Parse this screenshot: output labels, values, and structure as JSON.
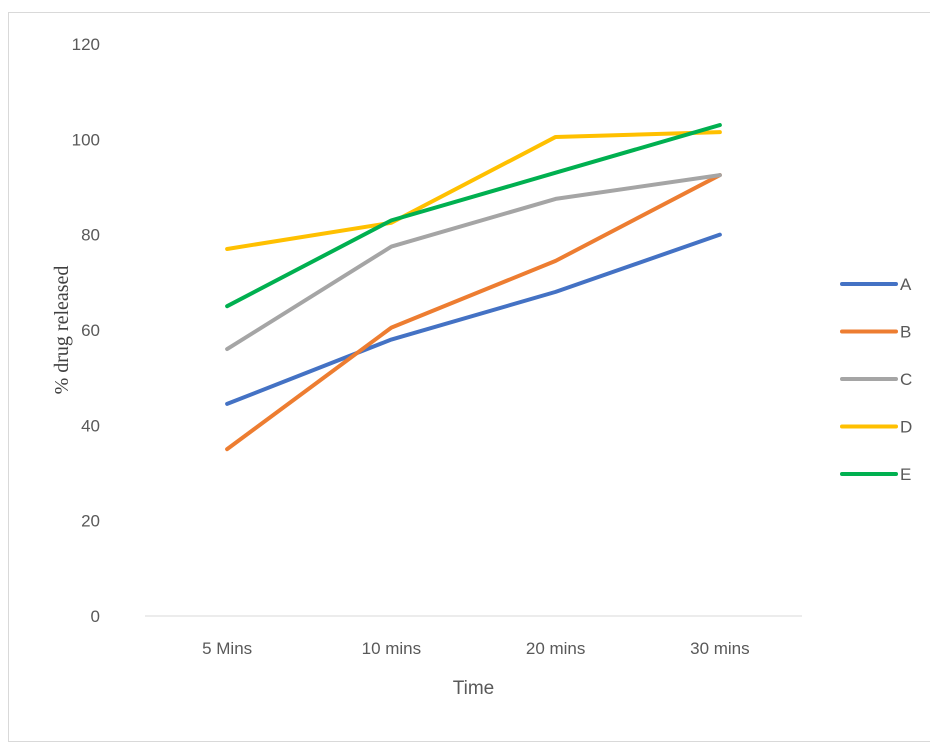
{
  "chart_data": {
    "type": "line",
    "title": "",
    "xlabel": "Time",
    "ylabel": "% drug released",
    "categories": [
      "5 Mins",
      "10 mins",
      "20 mins",
      "30 mins"
    ],
    "ylim": [
      0,
      120
    ],
    "yticks": [
      0,
      20,
      40,
      60,
      80,
      100,
      120
    ],
    "grid": false,
    "legend": "right",
    "series": [
      {
        "name": "A",
        "color": "#4472C4",
        "values": [
          44.5,
          58,
          68,
          80
        ]
      },
      {
        "name": "B",
        "color": "#ED7D31",
        "values": [
          35,
          60.5,
          74.5,
          92.5
        ]
      },
      {
        "name": "C",
        "color": "#A5A5A5",
        "values": [
          56,
          77.5,
          87.5,
          92.5
        ]
      },
      {
        "name": "D",
        "color": "#FFC000",
        "values": [
          77,
          82.5,
          100.5,
          101.5
        ]
      },
      {
        "name": "E",
        "color": "#00B050",
        "values": [
          65,
          83,
          93,
          103
        ]
      }
    ]
  }
}
